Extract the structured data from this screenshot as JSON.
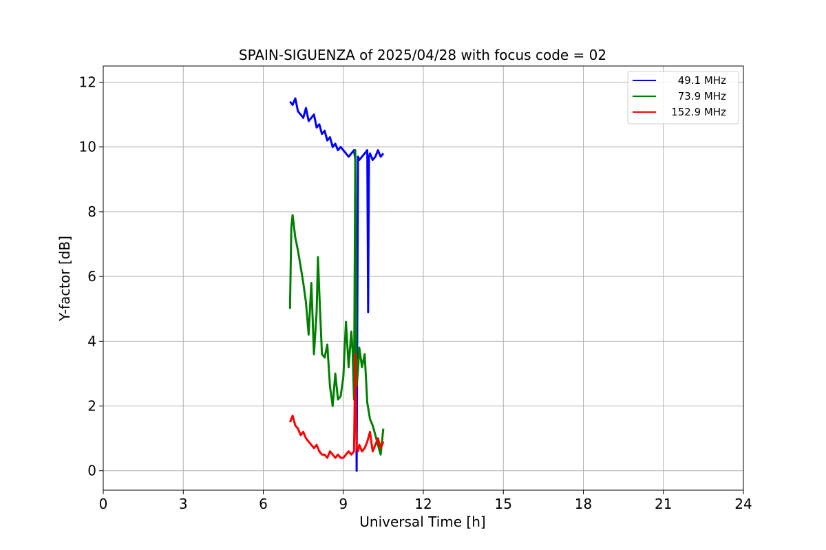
{
  "chart_data": {
    "type": "line",
    "title": "SPAIN-SIGUENZA of 2025/04/28 with focus code = 02",
    "xlabel": "Universal Time [h]",
    "ylabel": "Y-factor [dB]",
    "xlim": [
      0,
      24
    ],
    "ylim": [
      -0.6,
      12.5
    ],
    "xticks": [
      0,
      3,
      6,
      9,
      12,
      15,
      18,
      21,
      24
    ],
    "yticks": [
      0,
      2,
      4,
      6,
      8,
      10,
      12
    ],
    "grid": true,
    "legend_position": "top-right",
    "series": [
      {
        "name": "49.1 MHz",
        "color": "#0000ff",
        "x": [
          7.0,
          7.1,
          7.2,
          7.3,
          7.4,
          7.5,
          7.6,
          7.7,
          7.8,
          7.9,
          8.0,
          8.1,
          8.2,
          8.3,
          8.4,
          8.5,
          8.6,
          8.7,
          8.8,
          8.9,
          9.0,
          9.1,
          9.2,
          9.3,
          9.4,
          9.45,
          9.5,
          9.55,
          9.6,
          9.7,
          9.8,
          9.9,
          9.93,
          9.96,
          10.0,
          10.1,
          10.2,
          10.3,
          10.4,
          10.5
        ],
        "y": [
          11.4,
          11.3,
          11.5,
          11.1,
          11.0,
          10.9,
          11.2,
          10.8,
          10.9,
          11.0,
          10.6,
          10.7,
          10.4,
          10.5,
          10.2,
          10.3,
          10.0,
          10.1,
          9.9,
          10.0,
          9.9,
          9.8,
          9.7,
          9.8,
          9.9,
          9.6,
          0.0,
          9.7,
          9.6,
          9.7,
          9.8,
          9.9,
          4.9,
          9.7,
          9.8,
          9.6,
          9.7,
          9.9,
          9.7,
          9.8
        ]
      },
      {
        "name": "73.9 MHz",
        "color": "#008000",
        "x": [
          7.0,
          7.05,
          7.1,
          7.2,
          7.3,
          7.4,
          7.5,
          7.6,
          7.7,
          7.8,
          7.9,
          8.0,
          8.05,
          8.1,
          8.2,
          8.3,
          8.4,
          8.5,
          8.6,
          8.7,
          8.8,
          8.9,
          9.0,
          9.1,
          9.2,
          9.3,
          9.35,
          9.4,
          9.45,
          9.5,
          9.55,
          9.6,
          9.7,
          9.8,
          9.9,
          10.0,
          10.1,
          10.2,
          10.3,
          10.4,
          10.5
        ],
        "y": [
          5.0,
          7.5,
          7.9,
          7.2,
          6.8,
          6.3,
          5.8,
          5.2,
          4.2,
          5.8,
          3.6,
          4.9,
          6.6,
          5.5,
          3.6,
          3.5,
          3.9,
          2.6,
          2.0,
          3.0,
          2.2,
          2.3,
          2.9,
          4.6,
          3.2,
          4.3,
          3.7,
          2.2,
          9.9,
          2.6,
          3.1,
          3.8,
          3.2,
          3.6,
          2.1,
          1.6,
          1.4,
          1.1,
          0.8,
          0.5,
          1.3
        ]
      },
      {
        "name": "152.9 MHz",
        "color": "#ff0000",
        "x": [
          7.0,
          7.1,
          7.2,
          7.3,
          7.4,
          7.5,
          7.6,
          7.7,
          7.8,
          7.9,
          8.0,
          8.1,
          8.2,
          8.3,
          8.4,
          8.5,
          8.6,
          8.7,
          8.8,
          8.9,
          9.0,
          9.1,
          9.2,
          9.3,
          9.4,
          9.45,
          9.5,
          9.55,
          9.6,
          9.7,
          9.8,
          9.9,
          10.0,
          10.1,
          10.2,
          10.3,
          10.4,
          10.5
        ],
        "y": [
          1.5,
          1.7,
          1.4,
          1.3,
          1.1,
          1.2,
          1.0,
          0.9,
          0.8,
          0.7,
          0.8,
          0.6,
          0.5,
          0.5,
          0.4,
          0.6,
          0.5,
          0.4,
          0.5,
          0.4,
          0.4,
          0.5,
          0.6,
          0.5,
          0.6,
          3.6,
          0.7,
          0.6,
          0.8,
          0.6,
          0.7,
          0.9,
          1.2,
          0.6,
          0.8,
          1.0,
          0.7,
          0.9
        ]
      }
    ]
  }
}
